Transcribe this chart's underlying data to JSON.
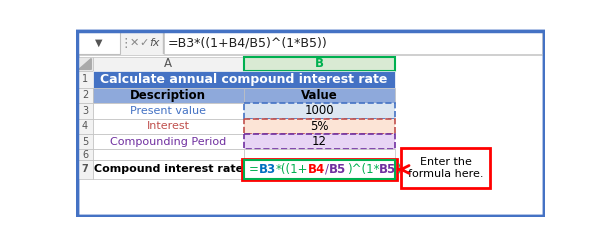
{
  "formula_bar_text": "=B3*((1+B4/B5)^(1*B5))",
  "col_a_label": "A",
  "col_b_label": "B",
  "row1_text": "Calculate annual compound interest rate",
  "row2_a": "Description",
  "row2_b": "Value",
  "row3_a": "Present value",
  "row3_b": "1000",
  "row4_a": "Interest",
  "row4_b": "5%",
  "row5_a": "Compounding Period",
  "row5_b": "12",
  "row7_a": "Compound interest rate",
  "callout_text": "Enter the\nformula here.",
  "row1_bg": "#4472C4",
  "row1_fg": "#FFFFFF",
  "row2_bg": "#8EA9DB",
  "row2_fg": "#000000",
  "row3_fg_a": "#4472C4",
  "row3_bg_b": "#DCE6F1",
  "row3_border": "#4472C4",
  "row4_fg_a": "#C0504D",
  "row4_bg_b": "#FCE4D6",
  "row4_border": "#C0504D",
  "row5_fg_a": "#7030A0",
  "row5_bg_b": "#E8D5F5",
  "row5_border": "#7030A0",
  "color_green": "#00B050",
  "color_blue": "#0070C0",
  "color_red": "#FF0000",
  "color_purple": "#7030A0",
  "outer_border": "#4472C4",
  "col_b_header_color": "#00B050",
  "col_b_header_bg": "#D9EAD3",
  "grid_line": "#BFBFBF",
  "row_num_bg": "#F2F2F2",
  "formula_bar_bg": "#F2F2F2",
  "callout_border": "#FF0000",
  "arrow_color": "#FF0000",
  "fig_w": 6.06,
  "fig_h": 2.44,
  "dpi": 100
}
